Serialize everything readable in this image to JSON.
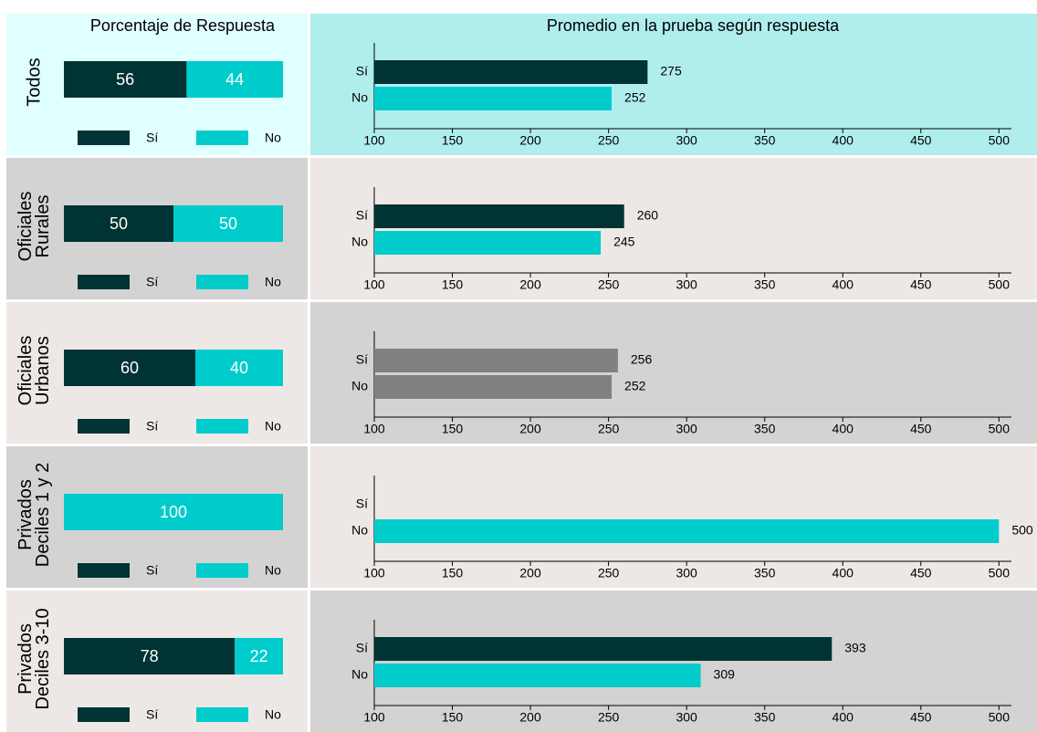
{
  "headers": {
    "left": "Porcentaje de Respuesta",
    "right": "Promedio en la prueba según respuesta"
  },
  "chart_data": [
    {
      "type": "stacked_bar",
      "title": [
        "Todos"
      ],
      "background": "#e0ffff",
      "xlim": [
        0,
        100
      ],
      "series": [
        {
          "name": "Sí",
          "color": "#003333",
          "values": [
            56
          ]
        },
        {
          "name": "No",
          "color": "#00cccc",
          "values": [
            44
          ]
        }
      ]
    },
    {
      "type": "hbar",
      "background": "#b0eeee",
      "categories": [
        "Sí",
        "No"
      ],
      "values": [
        275,
        252
      ],
      "colors": [
        "#003333",
        "#00cccc"
      ],
      "xlim": [
        100,
        508
      ],
      "xticks": [
        100,
        150,
        200,
        250,
        300,
        350,
        400,
        450,
        500
      ]
    },
    {
      "type": "stacked_bar",
      "title": [
        "Oficiales",
        "Rurales"
      ],
      "background": "#d3d3d3",
      "xlim": [
        0,
        100
      ],
      "series": [
        {
          "name": "Sí",
          "color": "#003333",
          "values": [
            50
          ]
        },
        {
          "name": "No",
          "color": "#00cccc",
          "values": [
            50
          ]
        }
      ]
    },
    {
      "type": "hbar",
      "background": "#ede8e6",
      "categories": [
        "Sí",
        "No"
      ],
      "values": [
        260,
        245
      ],
      "colors": [
        "#003333",
        "#00cccc"
      ],
      "xlim": [
        100,
        508
      ],
      "xticks": [
        100,
        150,
        200,
        250,
        300,
        350,
        400,
        450,
        500
      ]
    },
    {
      "type": "stacked_bar",
      "title": [
        "Oficiales",
        "Urbanos"
      ],
      "background": "#ede8e6",
      "xlim": [
        0,
        100
      ],
      "series": [
        {
          "name": "Sí",
          "color": "#003333",
          "values": [
            60
          ]
        },
        {
          "name": "No",
          "color": "#00cccc",
          "values": [
            40
          ]
        }
      ]
    },
    {
      "type": "hbar",
      "background": "#d3d3d3",
      "categories": [
        "Sí",
        "No"
      ],
      "values": [
        256,
        252
      ],
      "colors": [
        "#808080",
        "#808080"
      ],
      "xlim": [
        100,
        508
      ],
      "xticks": [
        100,
        150,
        200,
        250,
        300,
        350,
        400,
        450,
        500
      ]
    },
    {
      "type": "stacked_bar",
      "title": [
        "Privados",
        "Deciles 1 y 2"
      ],
      "background": "#d3d3d3",
      "xlim": [
        0,
        100
      ],
      "series": [
        {
          "name": "Sí",
          "color": "#003333",
          "values": [
            null
          ]
        },
        {
          "name": "No",
          "color": "#00cccc",
          "values": [
            100
          ]
        }
      ]
    },
    {
      "type": "hbar",
      "background": "#ede8e6",
      "categories": [
        "Sí",
        "No"
      ],
      "values": [
        null,
        500
      ],
      "colors": [
        "#003333",
        "#00cccc"
      ],
      "xlim": [
        100,
        508
      ],
      "xticks": [
        100,
        150,
        200,
        250,
        300,
        350,
        400,
        450,
        500
      ]
    },
    {
      "type": "stacked_bar",
      "title": [
        "Privados",
        "Deciles 3-10"
      ],
      "background": "#ede8e6",
      "xlim": [
        0,
        100
      ],
      "series": [
        {
          "name": "Sí",
          "color": "#003333",
          "values": [
            78
          ]
        },
        {
          "name": "No",
          "color": "#00cccc",
          "values": [
            22
          ]
        }
      ]
    },
    {
      "type": "hbar",
      "background": "#d3d3d3",
      "categories": [
        "Sí",
        "No"
      ],
      "values": [
        393,
        309
      ],
      "colors": [
        "#003333",
        "#00cccc"
      ],
      "xlim": [
        100,
        508
      ],
      "xticks": [
        100,
        150,
        200,
        250,
        300,
        350,
        400,
        450,
        500
      ]
    }
  ]
}
